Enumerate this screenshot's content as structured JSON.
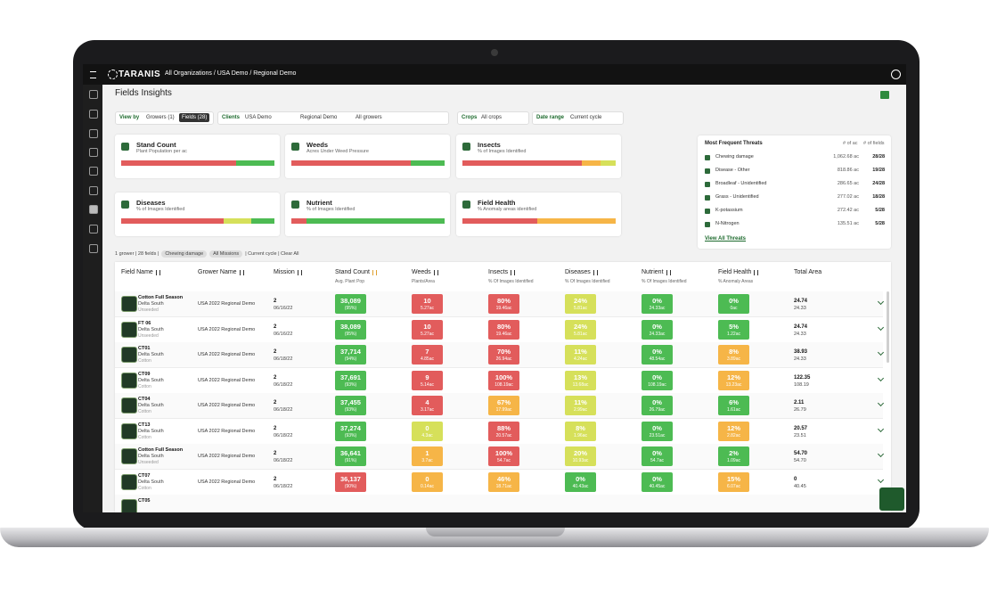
{
  "topbar": {
    "logo": "TARANIS",
    "breadcrumb": "All Organizations / USA Demo / Regional Demo"
  },
  "page_title": "Fields Insights",
  "filters": {
    "view_by_label": "View by",
    "growers": "Growers (1)",
    "fields": "Fields (28)",
    "clients_label": "Clients",
    "client": "USA Demo",
    "region": "Regional Demo",
    "growers_select": "All growers",
    "crops_label": "Crops",
    "crops": "All crops",
    "date_label": "Date range",
    "date": "Current cycle"
  },
  "cards": [
    {
      "title": "Stand Count",
      "subtitle": "Plant Population per ac",
      "segments": [
        {
          "color": "#e25c5c",
          "value": 75
        },
        {
          "color": "#4dbb53",
          "value": 25
        }
      ]
    },
    {
      "title": "Weeds",
      "subtitle": "Acres Under Weed Pressure",
      "segments": [
        {
          "color": "#e25c5c",
          "value": 78
        },
        {
          "color": "#4dbb53",
          "value": 22
        }
      ]
    },
    {
      "title": "Insects",
      "subtitle": "% of Images Identified",
      "segments": [
        {
          "color": "#e25c5c",
          "value": 78
        },
        {
          "color": "#f6b547",
          "value": 12
        },
        {
          "color": "#d6e05a",
          "value": 10
        }
      ]
    },
    {
      "title": "Diseases",
      "subtitle": "% of Images Identified",
      "segments": [
        {
          "color": "#e25c5c",
          "value": 67
        },
        {
          "color": "#d6e05a",
          "value": 18
        },
        {
          "color": "#4dbb53",
          "value": 15
        }
      ]
    },
    {
      "title": "Nutrient",
      "subtitle": "% of Images Identified",
      "segments": [
        {
          "color": "#e25c5c",
          "value": 10
        },
        {
          "color": "#4dbb53",
          "value": 90
        }
      ]
    },
    {
      "title": "Field Health",
      "subtitle": "% Anomaly areas identified",
      "segments": [
        {
          "color": "#e25c5c",
          "value": 49
        },
        {
          "color": "#f6b547",
          "value": 51
        }
      ]
    }
  ],
  "threats": {
    "title": "Most Frequent Threats",
    "col_area": "# of ac",
    "col_fields": "# of fields",
    "rows": [
      {
        "name": "Chewing damage",
        "area": "1,062.68 ac",
        "fields": "28/28"
      },
      {
        "name": "Disease - Other",
        "area": "818.86 ac",
        "fields": "19/28"
      },
      {
        "name": "Broadleaf - Unidentified",
        "area": "286.65 ac",
        "fields": "24/28"
      },
      {
        "name": "Grass - Unidentified",
        "area": "277.02 ac",
        "fields": "18/28"
      },
      {
        "name": "K-potassium",
        "area": "272.42 ac",
        "fields": "5/28"
      },
      {
        "name": "N-Nitrogen",
        "area": "135.51 ac",
        "fields": "5/28"
      }
    ],
    "link": "View All Threats"
  },
  "active_filters": {
    "summary": "1 grower | 28 fields |",
    "chips": [
      "Chewing damage",
      "All Missions"
    ],
    "tail": "| Current cycle | Clear All"
  },
  "table": {
    "columns": [
      {
        "name": "Field Name"
      },
      {
        "name": "Grower Name"
      },
      {
        "name": "Mission"
      },
      {
        "name": "Stand Count",
        "sub": "Avg. Plant Pop"
      },
      {
        "name": "Weeds",
        "sub": "Plants/Area"
      },
      {
        "name": "Insects",
        "sub": "% Of Images Identified"
      },
      {
        "name": "Diseases",
        "sub": "% Of Images Identified"
      },
      {
        "name": "Nutrient",
        "sub": "% Of Images Identified"
      },
      {
        "name": "Field Health",
        "sub": "% Anomaly Areas"
      },
      {
        "name": "Total Area"
      }
    ],
    "rows": [
      {
        "field": "Cotton Full Season",
        "region": "Delta South",
        "crop": "Unseeded",
        "grower": "USA 2022 Regional Demo",
        "mission": "2",
        "date": "06/16/22",
        "cells": [
          {
            "value": "38,089",
            "sub": "(95%)",
            "color": "#4dbb53"
          },
          {
            "value": "10",
            "sub": "5.27ac",
            "color": "#e25c5c"
          },
          {
            "value": "80%",
            "sub": "19.46ac",
            "color": "#e25c5c"
          },
          {
            "value": "24%",
            "sub": "5.81ac",
            "color": "#d6e05a"
          },
          {
            "value": "0%",
            "sub": "24.33ac",
            "color": "#4dbb53"
          },
          {
            "value": "0%",
            "sub": "0ac",
            "color": "#4dbb53"
          }
        ],
        "total": "24.74",
        "total_sub": "24.33"
      },
      {
        "field": "FT 06",
        "region": "Delta South",
        "crop": "Unseeded",
        "grower": "USA 2022 Regional Demo",
        "mission": "2",
        "date": "06/16/22",
        "cells": [
          {
            "value": "38,089",
            "sub": "(95%)",
            "color": "#4dbb53"
          },
          {
            "value": "10",
            "sub": "5.27ac",
            "color": "#e25c5c"
          },
          {
            "value": "80%",
            "sub": "19.46ac",
            "color": "#e25c5c"
          },
          {
            "value": "24%",
            "sub": "5.81ac",
            "color": "#d6e05a"
          },
          {
            "value": "0%",
            "sub": "24.33ac",
            "color": "#4dbb53"
          },
          {
            "value": "5%",
            "sub": "1.22ac",
            "color": "#4dbb53"
          }
        ],
        "total": "24.74",
        "total_sub": "24.33"
      },
      {
        "field": "CT01",
        "region": "Delta South",
        "crop": "Cotton",
        "grower": "USA 2022 Regional Demo",
        "mission": "2",
        "date": "06/18/22",
        "cells": [
          {
            "value": "37,714",
            "sub": "(94%)",
            "color": "#4dbb53"
          },
          {
            "value": "7",
            "sub": "4.85ac",
            "color": "#e25c5c"
          },
          {
            "value": "70%",
            "sub": "26.94ac",
            "color": "#e25c5c"
          },
          {
            "value": "11%",
            "sub": "4.24ac",
            "color": "#d6e05a"
          },
          {
            "value": "0%",
            "sub": "48.54ac",
            "color": "#4dbb53"
          },
          {
            "value": "8%",
            "sub": "3.89ac",
            "color": "#f6b547"
          }
        ],
        "total": "38.93",
        "total_sub": "24.33"
      },
      {
        "field": "CT09",
        "region": "Delta South",
        "crop": "Cotton",
        "grower": "USA 2022 Regional Demo",
        "mission": "2",
        "date": "06/18/22",
        "cells": [
          {
            "value": "37,691",
            "sub": "(93%)",
            "color": "#4dbb53"
          },
          {
            "value": "9",
            "sub": "5.14ac",
            "color": "#e25c5c"
          },
          {
            "value": "100%",
            "sub": "108.19ac",
            "color": "#e25c5c"
          },
          {
            "value": "13%",
            "sub": "13.68ac",
            "color": "#d6e05a"
          },
          {
            "value": "0%",
            "sub": "108.19ac",
            "color": "#4dbb53"
          },
          {
            "value": "12%",
            "sub": "13.23ac",
            "color": "#f6b547"
          }
        ],
        "total": "122.35",
        "total_sub": "108.19"
      },
      {
        "field": "CT04",
        "region": "Delta South",
        "crop": "Cotton",
        "grower": "USA 2022 Regional Demo",
        "mission": "2",
        "date": "06/18/22",
        "cells": [
          {
            "value": "37,455",
            "sub": "(93%)",
            "color": "#4dbb53"
          },
          {
            "value": "4",
            "sub": "3.17ac",
            "color": "#e25c5c"
          },
          {
            "value": "67%",
            "sub": "17.99ac",
            "color": "#f6b547"
          },
          {
            "value": "11%",
            "sub": "2.99ac",
            "color": "#d6e05a"
          },
          {
            "value": "0%",
            "sub": "26.79ac",
            "color": "#4dbb53"
          },
          {
            "value": "6%",
            "sub": "1.61ac",
            "color": "#4dbb53"
          }
        ],
        "total": "2.11",
        "total_sub": "26.79"
      },
      {
        "field": "CT13",
        "region": "Delta South",
        "crop": "Cotton",
        "grower": "USA 2022 Regional Demo",
        "mission": "2",
        "date": "06/18/22",
        "cells": [
          {
            "value": "37,274",
            "sub": "(93%)",
            "color": "#4dbb53"
          },
          {
            "value": "0",
            "sub": "4.3ac",
            "color": "#d6e05a"
          },
          {
            "value": "88%",
            "sub": "20.57ac",
            "color": "#e25c5c"
          },
          {
            "value": "8%",
            "sub": "1.96ac",
            "color": "#d6e05a"
          },
          {
            "value": "0%",
            "sub": "23.51ac",
            "color": "#4dbb53"
          },
          {
            "value": "12%",
            "sub": "2.82ac",
            "color": "#f6b547"
          }
        ],
        "total": "20.57",
        "total_sub": "23.51"
      },
      {
        "field": "Cotton Full Season",
        "region": "Delta South",
        "crop": "Unseeded",
        "grower": "USA 2022 Regional Demo",
        "mission": "2",
        "date": "06/18/22",
        "cells": [
          {
            "value": "36,641",
            "sub": "(91%)",
            "color": "#4dbb53"
          },
          {
            "value": "1",
            "sub": "3.7ac",
            "color": "#f6b547"
          },
          {
            "value": "100%",
            "sub": "54.7ac",
            "color": "#e25c5c"
          },
          {
            "value": "20%",
            "sub": "10.93ac",
            "color": "#d6e05a"
          },
          {
            "value": "0%",
            "sub": "54.7ac",
            "color": "#4dbb53"
          },
          {
            "value": "2%",
            "sub": "1.09ac",
            "color": "#4dbb53"
          }
        ],
        "total": "54.70",
        "total_sub": "54.70"
      },
      {
        "field": "CT07",
        "region": "Delta South",
        "crop": "Cotton",
        "grower": "USA 2022 Regional Demo",
        "mission": "2",
        "date": "06/18/22",
        "cells": [
          {
            "value": "36,137",
            "sub": "(90%)",
            "color": "#e25c5c"
          },
          {
            "value": "0",
            "sub": "0.14ac",
            "color": "#f6b547"
          },
          {
            "value": "46%",
            "sub": "18.71ac",
            "color": "#f6b547"
          },
          {
            "value": "0%",
            "sub": "40.43ac",
            "color": "#4dbb53"
          },
          {
            "value": "0%",
            "sub": "40.45ac",
            "color": "#4dbb53"
          },
          {
            "value": "15%",
            "sub": "6.07ac",
            "color": "#f6b547"
          }
        ],
        "total": "0",
        "total_sub": "40.45"
      },
      {
        "field": "CT05"
      }
    ]
  }
}
